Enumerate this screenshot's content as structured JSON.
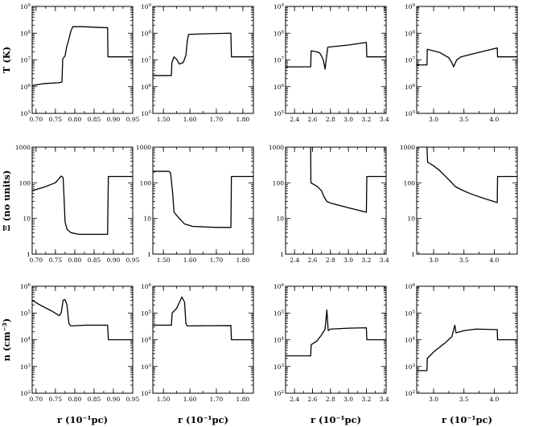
{
  "chart_data": {
    "type": "line",
    "row_labels": [
      "T (K)",
      "Ξ (no units)",
      "n (cm⁻³)"
    ],
    "column_xlabel": "r (10⁻¹pc)",
    "columns": [
      {
        "xlim": [
          0.69,
          0.95
        ],
        "xticks": [
          0.7,
          0.75,
          0.8,
          0.85,
          0.9,
          0.95
        ],
        "xtick_labels": [
          "0.70",
          "0.75",
          "0.80",
          "0.85",
          "0.90",
          "0.95"
        ]
      },
      {
        "xlim": [
          1.46,
          1.84
        ],
        "xticks": [
          1.5,
          1.6,
          1.7,
          1.8
        ],
        "xtick_labels": [
          "1.50",
          "1.60",
          "1.70",
          "1.80"
        ]
      },
      {
        "xlim": [
          2.3,
          3.42
        ],
        "xticks": [
          2.4,
          2.6,
          2.8,
          3.0,
          3.2,
          3.4
        ],
        "xtick_labels": [
          "2.4",
          "2.6",
          "2.8",
          "3.0",
          "3.2",
          "3.4"
        ]
      },
      {
        "xlim": [
          2.72,
          4.38
        ],
        "xticks": [
          3.0,
          3.5,
          4.0
        ],
        "xtick_labels": [
          "3.0",
          "3.5",
          "4.0"
        ]
      }
    ],
    "rows": [
      {
        "ylabel": "T (K)",
        "log": true,
        "ylim_exp": [
          5,
          9
        ],
        "ytick_exps": [
          5,
          6,
          7,
          8,
          9
        ]
      },
      {
        "ylabel": "Ξ (no units)",
        "log": true,
        "ylim_exp": [
          0,
          3
        ],
        "ytick_exps": [
          0,
          1,
          2,
          3
        ],
        "ytick_labels": [
          "1",
          "10",
          "100",
          "1000"
        ]
      },
      {
        "ylabel": "n (cm⁻³)",
        "log": true,
        "ylim_exp": [
          2,
          6
        ],
        "ytick_exps": [
          2,
          3,
          4,
          5,
          6
        ]
      }
    ],
    "panels": [
      {
        "row": 0,
        "col": 0,
        "series": [
          [
            0.69,
            1100000.0
          ],
          [
            0.72,
            1300000.0
          ],
          [
            0.76,
            1400000.0
          ],
          [
            0.767,
            1500000.0
          ],
          [
            0.769,
            11000000.0
          ],
          [
            0.775,
            14000000.0
          ],
          [
            0.779,
            30000000.0
          ],
          [
            0.785,
            60000000.0
          ],
          [
            0.79,
            120000000.0
          ],
          [
            0.795,
            175000000.0
          ],
          [
            0.82,
            175000000.0
          ],
          [
            0.88,
            160000000.0
          ],
          [
            0.885,
            160000000.0
          ],
          [
            0.886,
            13000000.0
          ],
          [
            0.95,
            13000000.0
          ]
        ]
      },
      {
        "row": 0,
        "col": 1,
        "series": [
          [
            1.46,
            2600000.0
          ],
          [
            1.53,
            2600000.0
          ],
          [
            1.532,
            8000000.0
          ],
          [
            1.54,
            13000000.0
          ],
          [
            1.55,
            10500000.0
          ],
          [
            1.56,
            7000000.0
          ],
          [
            1.575,
            8000000.0
          ],
          [
            1.585,
            15000000.0
          ],
          [
            1.59,
            50000000.0
          ],
          [
            1.595,
            90000000.0
          ],
          [
            1.66,
            95000000.0
          ],
          [
            1.755,
            100000000.0
          ],
          [
            1.757,
            13000000.0
          ],
          [
            1.84,
            13000000.0
          ]
        ]
      },
      {
        "row": 0,
        "col": 2,
        "series": [
          [
            2.3,
            5500000.0
          ],
          [
            2.58,
            5500000.0
          ],
          [
            2.585,
            22000000.0
          ],
          [
            2.65,
            20000000.0
          ],
          [
            2.68,
            18000000.0
          ],
          [
            2.7,
            14000000.0
          ],
          [
            2.72,
            10000000.0
          ],
          [
            2.74,
            4500000.0
          ],
          [
            2.755,
            12000000.0
          ],
          [
            2.77,
            30000000.0
          ],
          [
            3.0,
            36000000.0
          ],
          [
            3.2,
            45000000.0
          ],
          [
            3.205,
            13000000.0
          ],
          [
            3.42,
            13000000.0
          ]
        ]
      },
      {
        "row": 0,
        "col": 3,
        "series": [
          [
            2.72,
            6500000.0
          ],
          [
            2.89,
            6500000.0
          ],
          [
            2.895,
            25000000.0
          ],
          [
            3.1,
            19000000.0
          ],
          [
            3.25,
            12000000.0
          ],
          [
            3.3,
            8000000.0
          ],
          [
            3.33,
            5500000.0
          ],
          [
            3.35,
            7000000.0
          ],
          [
            3.38,
            10000000.0
          ],
          [
            3.45,
            13000000.0
          ],
          [
            3.7,
            18000000.0
          ],
          [
            4.05,
            28000000.0
          ],
          [
            4.055,
            13000000.0
          ],
          [
            4.38,
            13000000.0
          ]
        ]
      },
      {
        "row": 1,
        "col": 0,
        "series": [
          [
            0.69,
            60
          ],
          [
            0.72,
            75
          ],
          [
            0.75,
            100
          ],
          [
            0.765,
            155
          ],
          [
            0.77,
            140
          ],
          [
            0.772,
            50
          ],
          [
            0.775,
            8
          ],
          [
            0.78,
            5
          ],
          [
            0.79,
            4
          ],
          [
            0.81,
            3.6
          ],
          [
            0.885,
            3.6
          ],
          [
            0.887,
            150
          ],
          [
            0.95,
            150
          ]
        ]
      },
      {
        "row": 1,
        "col": 1,
        "series": [
          [
            1.46,
            210
          ],
          [
            1.52,
            210
          ],
          [
            1.527,
            190
          ],
          [
            1.535,
            50
          ],
          [
            1.54,
            15
          ],
          [
            1.56,
            10
          ],
          [
            1.58,
            7
          ],
          [
            1.61,
            6
          ],
          [
            1.7,
            5.6
          ],
          [
            1.755,
            5.6
          ],
          [
            1.757,
            150
          ],
          [
            1.84,
            150
          ]
        ]
      },
      {
        "row": 1,
        "col": 2,
        "series": [
          [
            2.58,
            1000
          ],
          [
            2.582,
            100
          ],
          [
            2.65,
            80
          ],
          [
            2.7,
            60
          ],
          [
            2.73,
            40
          ],
          [
            2.76,
            30
          ],
          [
            2.8,
            27
          ],
          [
            3.0,
            20
          ],
          [
            3.2,
            15
          ],
          [
            3.205,
            150
          ],
          [
            3.42,
            150
          ]
        ]
      },
      {
        "row": 1,
        "col": 3,
        "series": [
          [
            2.89,
            1000
          ],
          [
            2.9,
            380
          ],
          [
            3.0,
            300
          ],
          [
            3.1,
            220
          ],
          [
            3.2,
            150
          ],
          [
            3.3,
            100
          ],
          [
            3.35,
            80
          ],
          [
            3.45,
            65
          ],
          [
            3.6,
            50
          ],
          [
            3.8,
            38
          ],
          [
            4.05,
            28
          ],
          [
            4.055,
            150
          ],
          [
            4.38,
            150
          ]
        ]
      },
      {
        "row": 2,
        "col": 0,
        "series": [
          [
            0.69,
            300000.0
          ],
          [
            0.71,
            200000.0
          ],
          [
            0.74,
            120000.0
          ],
          [
            0.76,
            80000.0
          ],
          [
            0.765,
            100000.0
          ],
          [
            0.77,
            300000.0
          ],
          [
            0.775,
            320000.0
          ],
          [
            0.78,
            200000.0
          ],
          [
            0.785,
            40000.0
          ],
          [
            0.79,
            33000.0
          ],
          [
            0.83,
            35000.0
          ],
          [
            0.885,
            35000.0
          ],
          [
            0.887,
            10000.0
          ],
          [
            0.95,
            10000.0
          ]
        ]
      },
      {
        "row": 2,
        "col": 1,
        "series": [
          [
            1.46,
            35000.0
          ],
          [
            1.53,
            35000.0
          ],
          [
            1.533,
            100000.0
          ],
          [
            1.55,
            150000.0
          ],
          [
            1.57,
            400000.0
          ],
          [
            1.58,
            250000.0
          ],
          [
            1.585,
            40000.0
          ],
          [
            1.59,
            33000.0
          ],
          [
            1.755,
            34000.0
          ],
          [
            1.757,
            10000.0
          ],
          [
            1.84,
            10000.0
          ]
        ]
      },
      {
        "row": 2,
        "col": 2,
        "series": [
          [
            2.3,
            2500.0
          ],
          [
            2.58,
            2500.0
          ],
          [
            2.585,
            6500.0
          ],
          [
            2.65,
            9000.0
          ],
          [
            2.7,
            15000.0
          ],
          [
            2.74,
            25000.0
          ],
          [
            2.76,
            130000.0
          ],
          [
            2.775,
            22000.0
          ],
          [
            2.8,
            25000.0
          ],
          [
            3.0,
            27000.0
          ],
          [
            3.2,
            28000.0
          ],
          [
            3.205,
            10000.0
          ],
          [
            3.42,
            10000.0
          ]
        ]
      },
      {
        "row": 2,
        "col": 3,
        "series": [
          [
            2.72,
            700
          ],
          [
            2.89,
            700
          ],
          [
            2.895,
            2000.0
          ],
          [
            3.0,
            3500.0
          ],
          [
            3.2,
            8000.0
          ],
          [
            3.3,
            13000.0
          ],
          [
            3.35,
            35000.0
          ],
          [
            3.37,
            18000.0
          ],
          [
            3.5,
            22000.0
          ],
          [
            3.7,
            25000.0
          ],
          [
            4.05,
            24000.0
          ],
          [
            4.055,
            10000.0
          ],
          [
            4.38,
            10000.0
          ]
        ]
      }
    ]
  }
}
